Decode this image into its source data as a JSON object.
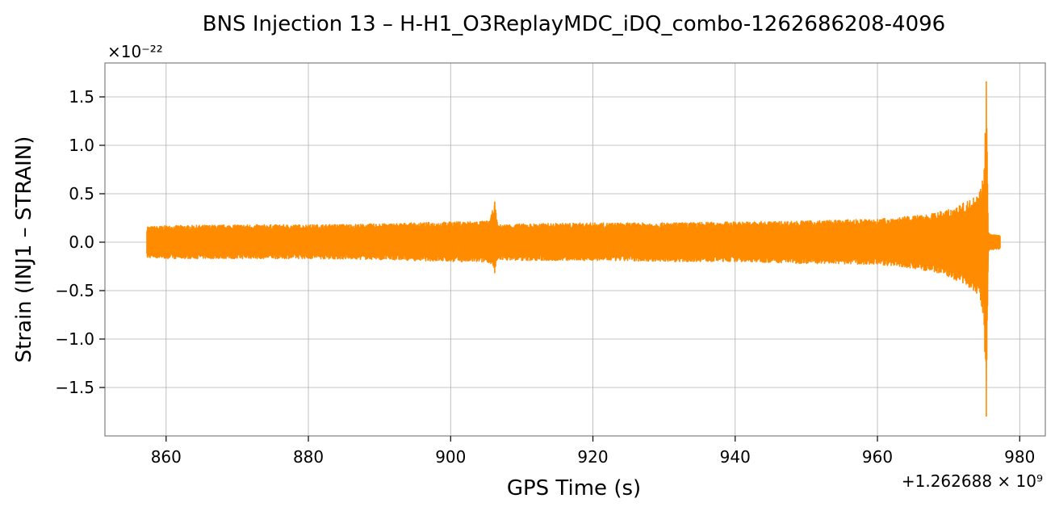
{
  "chart_data": {
    "type": "line",
    "title": "BNS Injection 13 – H-H1_O3ReplayMDC_iDQ_combo-1262686208-4096",
    "xlabel": "GPS Time (s)",
    "ylabel": "Strain (INJ1 – STRAIN)",
    "x_offset_label": "+1.262688 × 10⁹",
    "y_scale_label": "×10⁻²²",
    "xlim": [
      851.4,
      983.6
    ],
    "ylim": [
      -2.0,
      1.85
    ],
    "xticks": [
      860,
      880,
      900,
      920,
      940,
      960,
      980
    ],
    "xtick_labels": [
      "860",
      "880",
      "900",
      "920",
      "940",
      "960",
      "980"
    ],
    "yticks": [
      1.5,
      1.0,
      0.5,
      0.0,
      -0.5,
      -1.0,
      -1.5
    ],
    "ytick_labels": [
      "1.5",
      "1.0",
      "0.5",
      "0.0",
      "−0.5",
      "−1.0",
      "−1.5"
    ],
    "grid": true,
    "series": [
      {
        "color": "#ff8c00",
        "envelope": {
          "x": [
            857.4,
            860,
            870,
            880,
            890,
            900,
            905.5,
            906.2,
            906.6,
            910,
            920,
            930,
            940,
            950,
            960,
            965,
            968,
            970,
            972,
            973.5,
            974.5,
            975.0,
            975.3,
            975.6,
            976.0,
            977.2
          ],
          "upper": [
            0.16,
            0.17,
            0.18,
            0.18,
            0.19,
            0.21,
            0.22,
            0.42,
            0.18,
            0.19,
            0.2,
            0.2,
            0.21,
            0.22,
            0.24,
            0.27,
            0.3,
            0.34,
            0.4,
            0.46,
            0.55,
            0.75,
            1.66,
            0.1,
            0.08,
            0.07
          ],
          "lower": [
            -0.16,
            -0.17,
            -0.17,
            -0.17,
            -0.18,
            -0.2,
            -0.21,
            -0.32,
            -0.18,
            -0.19,
            -0.19,
            -0.2,
            -0.2,
            -0.22,
            -0.23,
            -0.27,
            -0.31,
            -0.36,
            -0.42,
            -0.5,
            -0.6,
            -0.85,
            -1.8,
            -0.1,
            -0.08,
            -0.07
          ]
        }
      }
    ]
  }
}
